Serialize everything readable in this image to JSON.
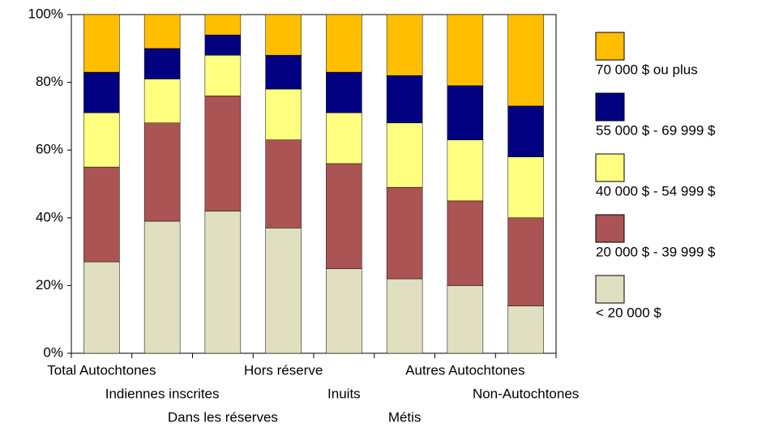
{
  "chart_data": {
    "type": "stacked_bar",
    "categories": [
      "Total Autochtones",
      "Indiennes inscrites",
      "Dans les réserves",
      "Hors réserve",
      "Inuits",
      "Métis",
      "Autres Autochtones",
      "Non-Autochtones"
    ],
    "series": [
      {
        "name": "< 20 000 $",
        "color": "#e0dfc0",
        "values": [
          27,
          39,
          42,
          37,
          25,
          22,
          20,
          14
        ]
      },
      {
        "name": "20 000 $ - 39 999 $",
        "color": "#ab5454",
        "values": [
          28,
          29,
          34,
          26,
          31,
          27,
          25,
          26
        ]
      },
      {
        "name": "40 000 $ - 54 999 $",
        "color": "#ffff80",
        "values": [
          16,
          13,
          12,
          15,
          15,
          19,
          18,
          18
        ]
      },
      {
        "name": "55 000 $ - 69 999 $",
        "color": "#000080",
        "values": [
          12,
          9,
          6,
          10,
          12,
          14,
          16,
          15
        ]
      },
      {
        "name": "70 000 $ ou plus",
        "color": "#ffbf00",
        "values": [
          17,
          10,
          6,
          12,
          17,
          18,
          21,
          27
        ]
      }
    ],
    "ylim": [
      0,
      100
    ],
    "yticks": [
      {
        "value": 0,
        "label": "0%"
      },
      {
        "value": 20,
        "label": "20%"
      },
      {
        "value": 40,
        "label": "40%"
      },
      {
        "value": 60,
        "label": "60%"
      },
      {
        "value": 80,
        "label": "80%"
      },
      {
        "value": 100,
        "label": "100%"
      }
    ]
  }
}
